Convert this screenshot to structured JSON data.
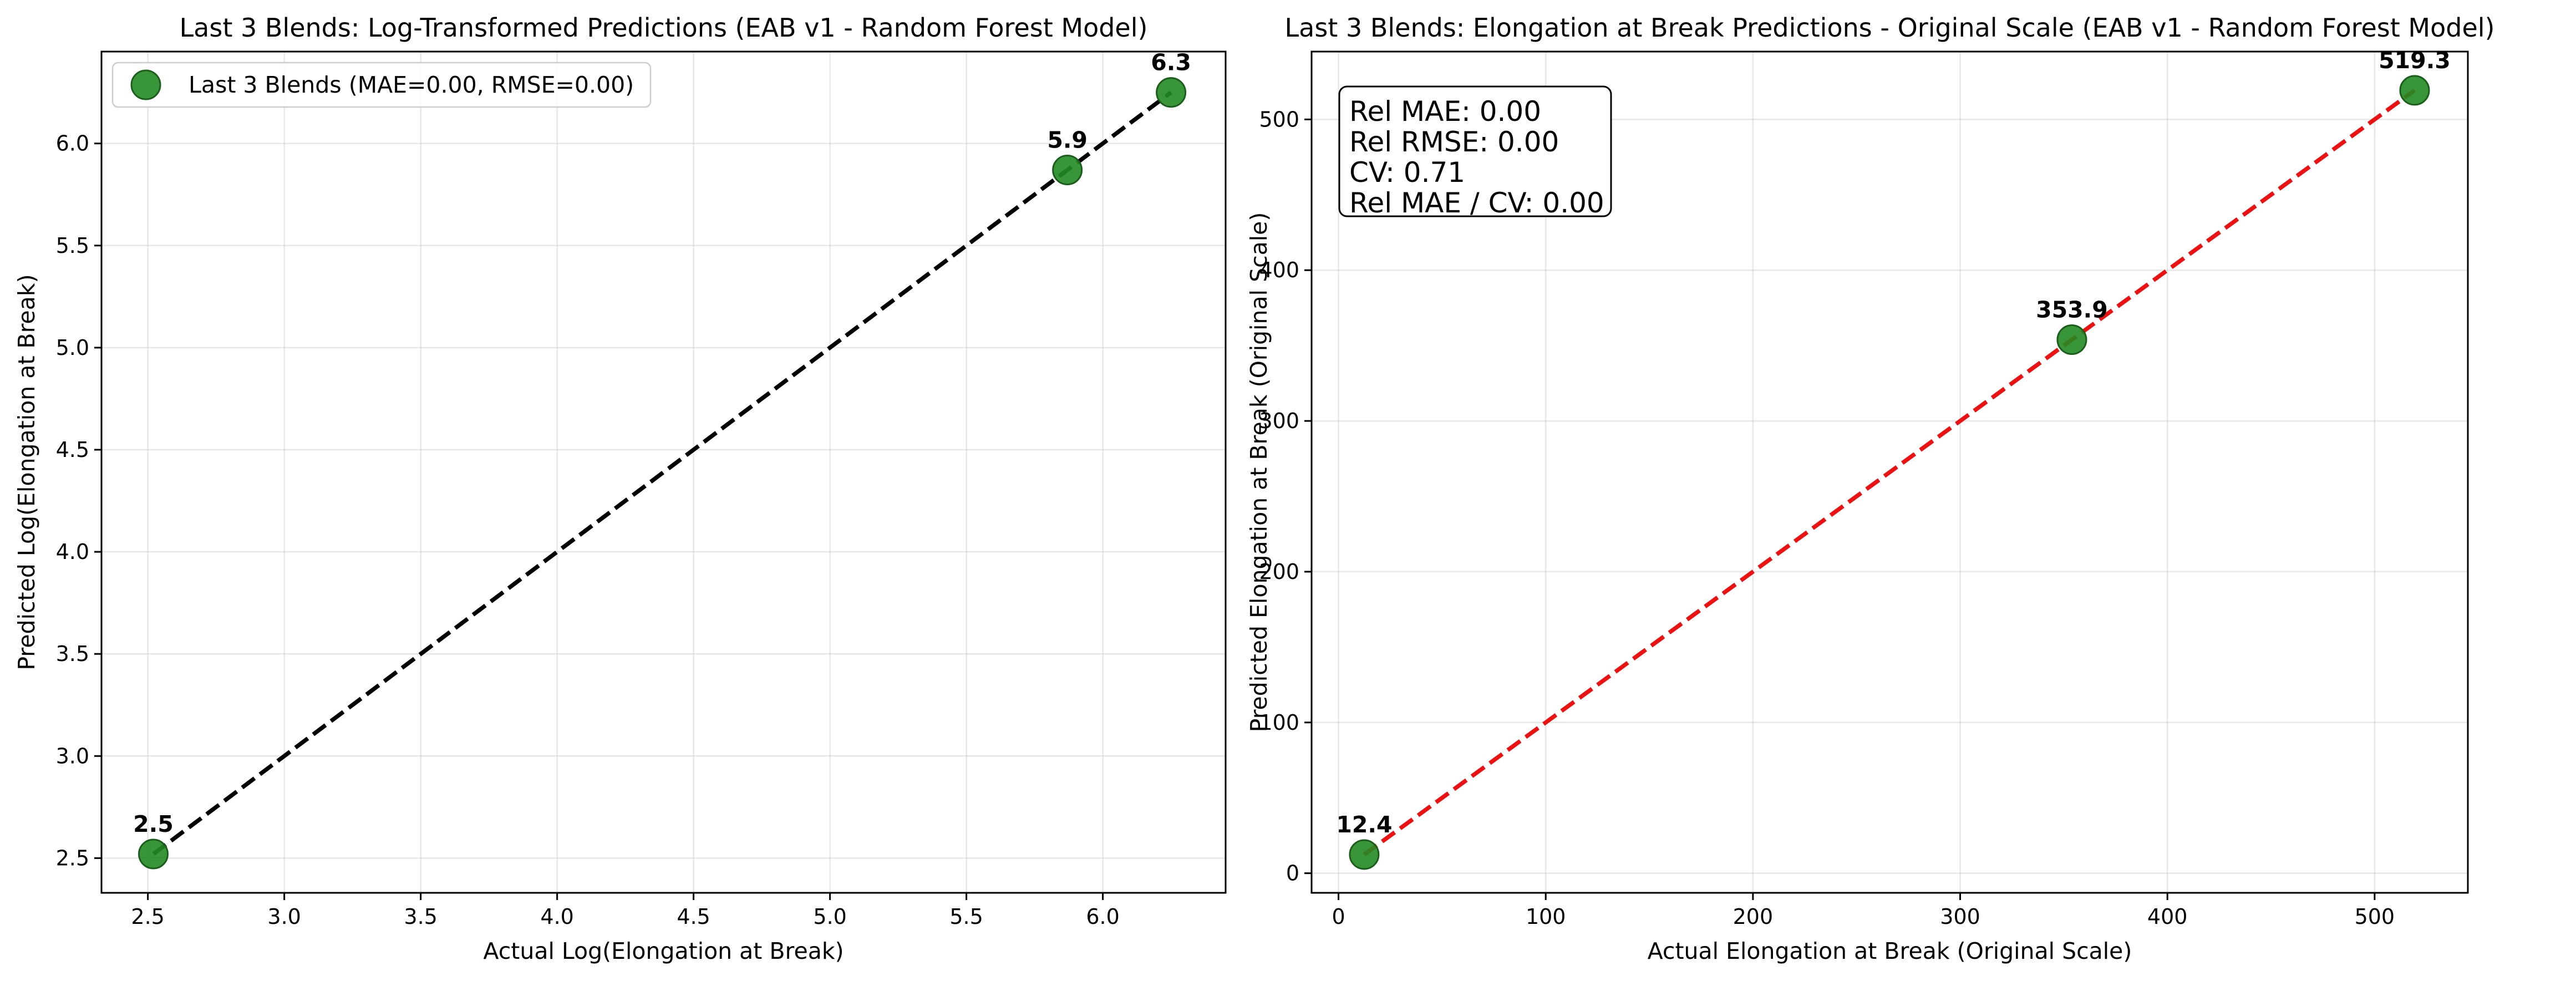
{
  "chart_data": [
    {
      "type": "scatter",
      "title": "Last 3 Blends: Log-Transformed Predictions (EAB v1 - Random Forest Model)",
      "xlabel": "Actual Log(Elongation at Break)",
      "ylabel": "Predicted Log(Elongation at Break)",
      "xlim": [
        2.33,
        6.45
      ],
      "ylim": [
        2.33,
        6.45
      ],
      "xticks": [
        "2.5",
        "3.0",
        "3.5",
        "4.0",
        "4.5",
        "5.0",
        "5.5",
        "6.0"
      ],
      "yticks": [
        "2.5",
        "3.0",
        "3.5",
        "4.0",
        "4.5",
        "5.0",
        "5.5",
        "6.0"
      ],
      "grid": true,
      "legend": {
        "position": "top-left",
        "entries": [
          "Last 3 Blends (MAE=0.00, RMSE=0.00)"
        ]
      },
      "series": [
        {
          "name": "Last 3 Blends (MAE=0.00, RMSE=0.00)",
          "color": "#228b22",
          "x": [
            2.52,
            5.87,
            6.25
          ],
          "y": [
            2.52,
            5.87,
            6.25
          ],
          "labels": [
            "2.5",
            "5.9",
            "6.3"
          ]
        }
      ],
      "reference_line": {
        "from": [
          2.52,
          2.52
        ],
        "to": [
          6.25,
          6.25
        ],
        "color": "#000000",
        "style": "dashed"
      }
    },
    {
      "type": "scatter",
      "title": "Last 3 Blends: Elongation at Break Predictions - Original Scale (EAB v1 - Random Forest Model)",
      "xlabel": "Actual Elongation at Break (Original Scale)",
      "ylabel": "Predicted Elongation at Break (Original Scale)",
      "xlim": [
        -13,
        545
      ],
      "ylim": [
        -13,
        545
      ],
      "xticks": [
        "0",
        "100",
        "200",
        "300",
        "400",
        "500"
      ],
      "yticks": [
        "0",
        "100",
        "200",
        "300",
        "400",
        "500"
      ],
      "grid": true,
      "series": [
        {
          "color": "#228b22",
          "x": [
            12.4,
            353.9,
            519.3
          ],
          "y": [
            12.4,
            353.9,
            519.3
          ],
          "labels": [
            "12.4",
            "353.9",
            "519.3"
          ]
        }
      ],
      "reference_line": {
        "from": [
          12.4,
          12.4
        ],
        "to": [
          519.3,
          519.3
        ],
        "color": "#ee1111",
        "style": "dashed"
      },
      "stats_box": [
        "Rel MAE: 0.00",
        "Rel RMSE: 0.00",
        "CV: 0.71",
        "Rel MAE / CV: 0.00"
      ]
    }
  ]
}
